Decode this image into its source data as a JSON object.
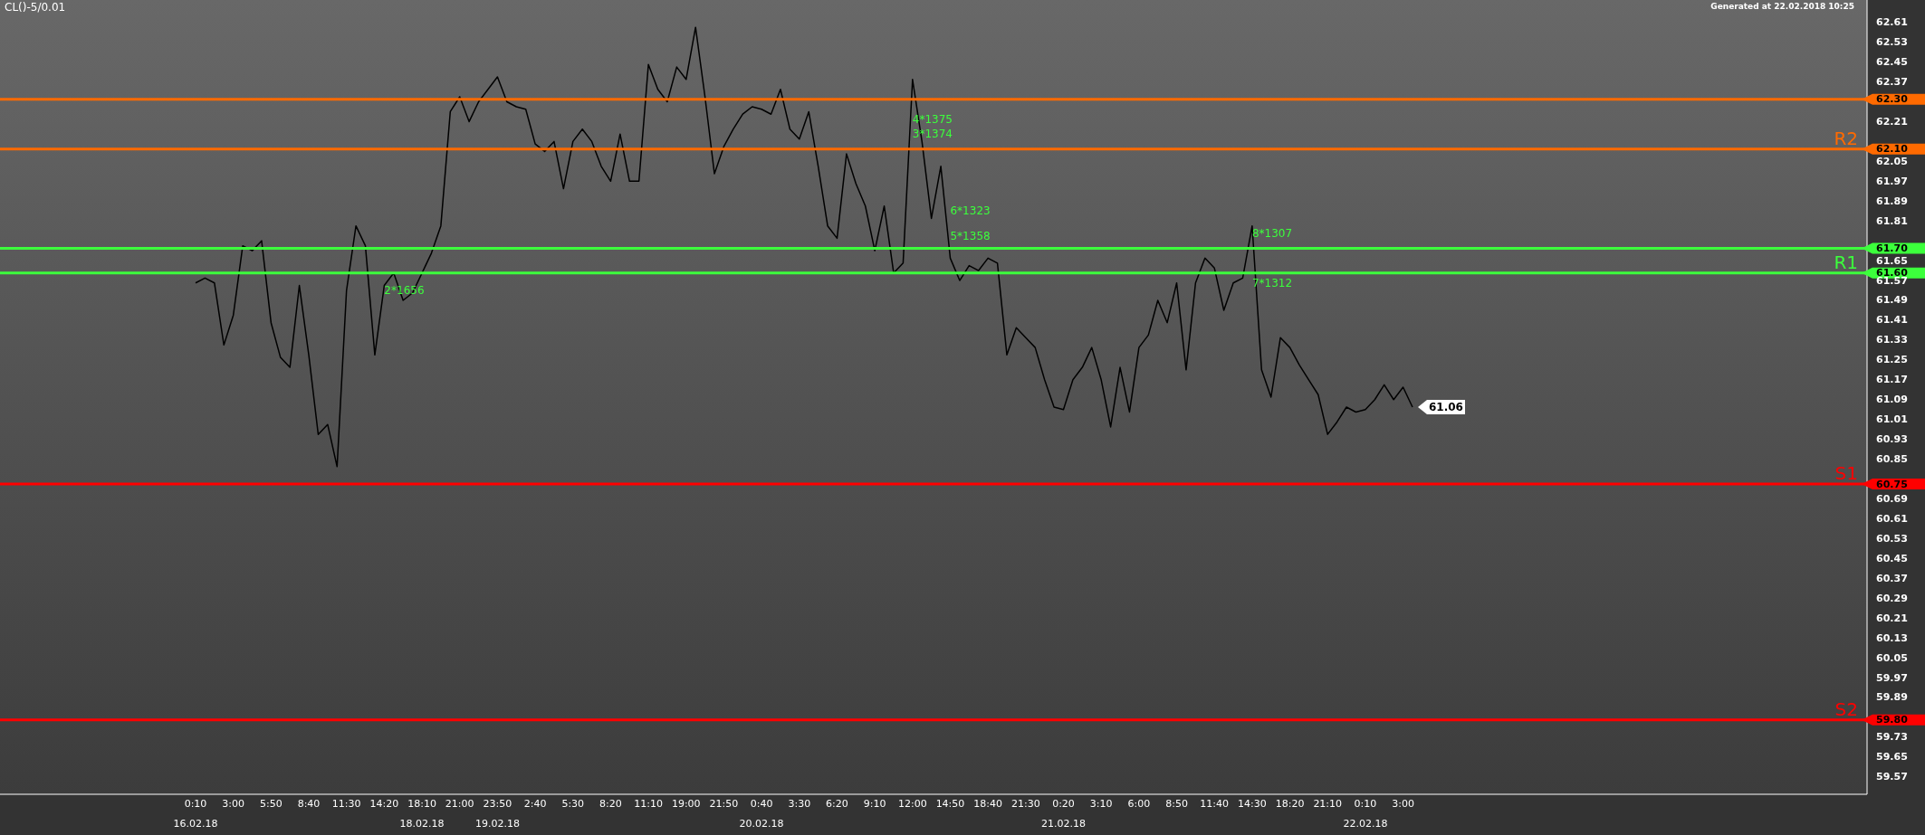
{
  "chart_data": {
    "type": "line",
    "title": "CL()-5/0.01",
    "annotations": [
      "Generated at 22.02.2018 10:25",
      {
        "text": "2*1656",
        "x": "14:20",
        "y": 61.53
      },
      {
        "text": "4*1375",
        "x": "12:00",
        "y": 62.22
      },
      {
        "text": "3*1374",
        "x": "12:00",
        "y": 62.16
      },
      {
        "text": "6*1323",
        "x": "14:50",
        "y": 61.85
      },
      {
        "text": "5*1358",
        "x": "14:50",
        "y": 61.75
      },
      {
        "text": "8*1307",
        "x": "14:30",
        "y": 61.76
      },
      {
        "text": "7*1312",
        "x": "14:30",
        "y": 61.56
      }
    ],
    "categories": [
      "0:10\n16.02.18",
      null,
      null,
      null,
      "3:00",
      null,
      null,
      null,
      "5:50",
      null,
      null,
      null,
      "8:40",
      null,
      null,
      null,
      "11:30",
      null,
      null,
      null,
      "14:20",
      null,
      null,
      null,
      "18:10\n18.02.18",
      null,
      null,
      null,
      "21:00",
      null,
      null,
      null,
      "23:50\n19.02.18",
      null,
      null,
      null,
      "2:40",
      null,
      null,
      null,
      "5:30",
      null,
      null,
      null,
      "8:20",
      null,
      null,
      null,
      "11:10",
      null,
      null,
      null,
      "19:00",
      null,
      null,
      null,
      "21:50",
      null,
      null,
      null,
      "0:40\n20.02.18",
      null,
      null,
      null,
      "3:30",
      null,
      null,
      null,
      "6:20",
      null,
      null,
      null,
      "9:10",
      null,
      null,
      null,
      "12:00",
      null,
      null,
      null,
      "14:50",
      null,
      null,
      null,
      "18:40",
      null,
      null,
      null,
      "21:30",
      null,
      null,
      null,
      "0:20\n21.02.18",
      null,
      null,
      null,
      "3:10",
      null,
      null,
      null,
      "6:00",
      null,
      null,
      null,
      "8:50",
      null,
      null,
      null,
      "11:40",
      null,
      null,
      null,
      "14:30",
      null,
      null,
      null,
      "18:20",
      null,
      null,
      null,
      "21:10",
      null,
      null,
      null,
      "0:10\n22.02.18",
      null,
      null,
      null,
      "3:00",
      null
    ],
    "series": [
      {
        "color": "#000000",
        "values": [
          61.56,
          61.58,
          61.56,
          61.31,
          61.43,
          61.71,
          61.69,
          61.73,
          61.4,
          61.26,
          61.22,
          61.55,
          61.27,
          60.95,
          60.99,
          60.82,
          61.53,
          61.79,
          61.71,
          61.27,
          61.55,
          61.6,
          61.49,
          61.52,
          61.6,
          61.68,
          61.79,
          62.25,
          62.31,
          62.21,
          62.29,
          62.34,
          62.39,
          62.29,
          62.27,
          62.26,
          62.12,
          62.09,
          62.13,
          61.94,
          62.13,
          62.18,
          62.13,
          62.03,
          61.97,
          62.16,
          61.97,
          61.97,
          62.44,
          62.34,
          62.29,
          62.43,
          62.38,
          62.59,
          62.31,
          62.0,
          62.11,
          62.18,
          62.24,
          62.27,
          62.26,
          62.24,
          62.34,
          62.18,
          62.14,
          62.25,
          62.03,
          61.79,
          61.74,
          62.08,
          61.96,
          61.87,
          61.69,
          61.87,
          61.6,
          61.64,
          62.38,
          62.13,
          61.82,
          62.03,
          61.66,
          61.57,
          61.63,
          61.61,
          61.66,
          61.64,
          61.27,
          61.38,
          61.34,
          61.3,
          61.17,
          61.06,
          61.05,
          61.17,
          61.22,
          61.3,
          61.17,
          60.98,
          61.22,
          61.04,
          61.3,
          61.35,
          61.49,
          61.4,
          61.56,
          61.21,
          61.56,
          61.66,
          61.62,
          61.45,
          61.56,
          61.58,
          61.79,
          61.21,
          61.1,
          61.34,
          61.3,
          61.23,
          61.17,
          61.11,
          60.95,
          61.0,
          61.06,
          61.04,
          61.05,
          61.09,
          61.15,
          61.09,
          61.14,
          61.06
        ],
        "value_labels": [
          null,
          null,
          null,
          null,
          null,
          null,
          null,
          null,
          null,
          null,
          null,
          null,
          null,
          null,
          null,
          null,
          null,
          null,
          null,
          null,
          null,
          null,
          null,
          null,
          null,
          null,
          null,
          null,
          null,
          null,
          null,
          null,
          null,
          null,
          null,
          null,
          null,
          null,
          null,
          null,
          null,
          null,
          null,
          null,
          null,
          null,
          null,
          null,
          null,
          null,
          null,
          null,
          null,
          null,
          null,
          null,
          null,
          null,
          null,
          null,
          null,
          null,
          null,
          null,
          null,
          null,
          null,
          null,
          null,
          null,
          null,
          null,
          null,
          null,
          null,
          null,
          null,
          null,
          null,
          null,
          null,
          null,
          null,
          null,
          null,
          null,
          null,
          null,
          null,
          null,
          null,
          null,
          null,
          null,
          null,
          null,
          null,
          null,
          null,
          null,
          null,
          null,
          null,
          null,
          null,
          null,
          null,
          null,
          null,
          null,
          null,
          null,
          null,
          null,
          null,
          null,
          null,
          null,
          null,
          null,
          null,
          null,
          null,
          null,
          null,
          null,
          null,
          null,
          null,
          "61.06"
        ]
      }
    ],
    "ylim": [
      59.5,
      62.7
    ],
    "yticks": [
      62.61,
      62.53,
      62.45,
      62.37,
      {
        "value": 62.3,
        "label": "62.30"
      },
      62.21,
      {
        "value": 62.1,
        "label": "62.10"
      },
      62.05,
      61.97,
      61.89,
      61.81,
      {
        "value": 61.7,
        "label": "61.70"
      },
      61.65,
      {
        "value": 61.6,
        "label": "61.60"
      },
      61.57,
      61.49,
      61.41,
      61.33,
      61.25,
      61.17,
      61.09,
      61.01,
      60.93,
      60.85,
      {
        "value": 60.75,
        "label": "60.75"
      },
      60.69,
      60.61,
      60.53,
      60.45,
      60.37,
      60.29,
      60.21,
      60.13,
      60.05,
      59.97,
      59.89,
      {
        "value": 59.8,
        "label": "59.80"
      },
      59.73,
      59.65,
      59.57
    ],
    "ref_lines": [
      {
        "axis": "y",
        "value": 62.3,
        "color": "#ff6a00"
      },
      {
        "axis": "y",
        "value": 62.1,
        "label": "R2",
        "color": "#ff6a00"
      },
      {
        "axis": "y",
        "value": 61.7,
        "color": "#3cff3c"
      },
      {
        "axis": "y",
        "value": 61.6,
        "label": "R1",
        "color": "#3cff3c"
      },
      {
        "axis": "y",
        "value": 60.75,
        "label": "S1",
        "color": "#ff0000"
      },
      {
        "axis": "y",
        "value": 59.8,
        "label": "S2",
        "color": "#ff0000"
      }
    ],
    "marker": "none",
    "line_style": "solid"
  }
}
